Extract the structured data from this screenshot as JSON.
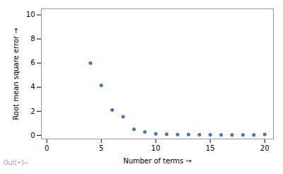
{
  "chart_data": {
    "type": "scatter",
    "x": [
      4,
      5,
      6,
      7,
      8,
      9,
      10,
      11,
      12,
      13,
      14,
      15,
      16,
      17,
      18,
      19,
      20
    ],
    "values": [
      6.0,
      4.15,
      2.1,
      1.55,
      0.5,
      0.28,
      0.12,
      0.09,
      0.07,
      0.06,
      0.05,
      0.05,
      0.04,
      0.04,
      0.04,
      0.04,
      0.08
    ],
    "color": "#4472C4",
    "xlabel": "Number of terms",
    "ylabel": "Root mean square error",
    "xlim": [
      -0.5,
      20.8
    ],
    "ylim": [
      -0.3,
      10.5
    ],
    "xticks": [
      0,
      5,
      10,
      15,
      20
    ],
    "yticks": [
      0,
      2,
      4,
      6,
      8,
      10
    ],
    "annotations": [
      "Out[•]="
    ],
    "grid": false
  }
}
